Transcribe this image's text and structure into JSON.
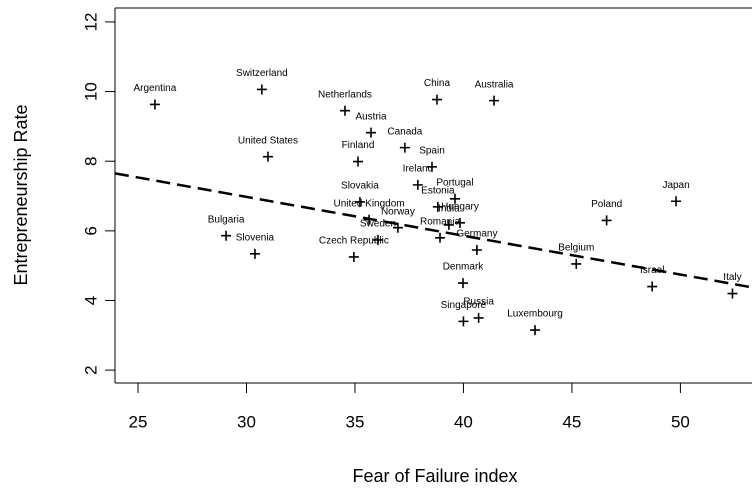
{
  "chart_data": {
    "type": "scatter",
    "xlabel": "Fear of Failure index",
    "ylabel": "Entrepreneurship Rate",
    "labels": [
      "Argentina",
      "Switzerland",
      "Netherlands",
      "China",
      "Australia",
      "Austria",
      "Canada",
      "United States",
      "Finland",
      "Spain",
      "Ireland",
      "Portugal",
      "Slovakia",
      "Estonia",
      "Hungary",
      "United Kingdom",
      "Norway",
      "India",
      "Sweden",
      "Romania",
      "Germany",
      "Czech Republic",
      "Bulgaria",
      "Slovenia",
      "Denmark",
      "Singapore",
      "Russia",
      "Luxembourg",
      "Belgium",
      "Poland",
      "Japan",
      "Israel",
      "Italy"
    ],
    "x": [
      25.78,
      30.71,
      34.54,
      38.78,
      41.41,
      35.74,
      37.3,
      30.99,
      35.14,
      38.55,
      37.9,
      39.61,
      35.23,
      38.82,
      39.84,
      35.65,
      36.98,
      39.33,
      36.06,
      38.92,
      40.62,
      34.95,
      29.06,
      30.39,
      39.98,
      40.0,
      40.7,
      43.3,
      45.2,
      46.6,
      49.8,
      48.7,
      52.4
    ],
    "y": [
      9.63,
      10.06,
      9.45,
      9.77,
      9.74,
      8.82,
      8.39,
      8.13,
      7.99,
      7.84,
      7.32,
      6.92,
      6.83,
      6.69,
      6.23,
      6.32,
      6.09,
      6.17,
      5.74,
      5.8,
      5.45,
      5.25,
      5.86,
      5.34,
      4.5,
      3.4,
      3.5,
      3.15,
      5.05,
      6.3,
      6.85,
      4.4,
      4.2
    ],
    "color": "#000000",
    "trend": {
      "intercept": 10.32,
      "slope": -0.1115
    },
    "xlim": [
      23.94,
      53.3
    ],
    "xticks": [
      25,
      30,
      35,
      40,
      45,
      50
    ],
    "ylim": [
      1.63,
      12.4
    ],
    "yticks": [
      2,
      4,
      6,
      8,
      10,
      12
    ],
    "grid": false
  }
}
